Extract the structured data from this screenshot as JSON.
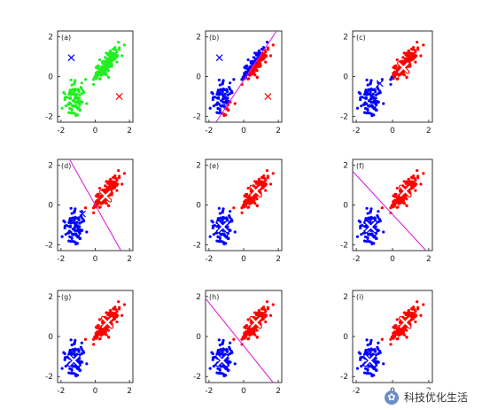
{
  "chart_data": [
    {
      "type": "scatter",
      "label": "(a)",
      "xlim": [
        -2.2,
        2.2
      ],
      "ylim": [
        -2.3,
        2.3
      ],
      "x_ticks": [
        "-2",
        "0",
        "2"
      ],
      "y_ticks": [
        "2",
        "0",
        "-2"
      ],
      "boundary": null,
      "centers": [
        {
          "x": -1.4,
          "y": 0.95,
          "color": "#0000ff",
          "marker": "x"
        },
        {
          "x": 1.4,
          "y": -1.0,
          "color": "#ff0000",
          "marker": "x"
        }
      ],
      "mode": "unassigned"
    },
    {
      "type": "scatter",
      "label": "(b)",
      "xlim": [
        -2.2,
        2.2
      ],
      "ylim": [
        -2.3,
        2.3
      ],
      "x_ticks": [
        "-2",
        "0",
        "2"
      ],
      "y_ticks": [
        "2",
        "0",
        "-2"
      ],
      "boundary": {
        "x1": -1.6,
        "y1": -2.3,
        "x2": 1.9,
        "y2": 2.3
      },
      "centers": [
        {
          "x": -1.4,
          "y": 0.95,
          "color": "#0000ff",
          "marker": "x"
        },
        {
          "x": 1.4,
          "y": -1.0,
          "color": "#ff0000",
          "marker": "x"
        }
      ],
      "mode": "split"
    },
    {
      "type": "scatter",
      "label": "(c)",
      "xlim": [
        -2.2,
        2.2
      ],
      "ylim": [
        -2.3,
        2.3
      ],
      "x_ticks": [
        "-2",
        "0",
        "2"
      ],
      "y_ticks": [
        "2",
        "0",
        "-2"
      ],
      "boundary": null,
      "centers": [
        {
          "x": -0.7,
          "y": -0.35,
          "color": "#0000ff",
          "marker": "x"
        },
        {
          "x": 0.6,
          "y": 0.45,
          "color": "#ff0000",
          "marker": "bigx"
        }
      ],
      "mode": "split"
    },
    {
      "type": "scatter",
      "label": "(d)",
      "xlim": [
        -2.2,
        2.2
      ],
      "ylim": [
        -2.3,
        2.3
      ],
      "x_ticks": [
        "-2",
        "0",
        "2"
      ],
      "y_ticks": [
        "2",
        "0",
        "-2"
      ],
      "boundary": {
        "x1": -1.5,
        "y1": 2.3,
        "x2": 1.5,
        "y2": -2.3
      },
      "centers": [
        {
          "x": -0.75,
          "y": -0.45,
          "color": "#0000ff",
          "marker": "x"
        },
        {
          "x": 0.6,
          "y": 0.45,
          "color": "#ff0000",
          "marker": "bigx"
        }
      ],
      "mode": "clustered"
    },
    {
      "type": "scatter",
      "label": "(e)",
      "xlim": [
        -2.2,
        2.2
      ],
      "ylim": [
        -2.3,
        2.3
      ],
      "x_ticks": [
        "-2",
        "0",
        "2"
      ],
      "y_ticks": [
        "2",
        "0",
        "-2"
      ],
      "boundary": null,
      "centers": [
        {
          "x": -1.2,
          "y": -1.1,
          "color": "#0000ff",
          "marker": "bigx"
        },
        {
          "x": 0.7,
          "y": 0.7,
          "color": "#ff0000",
          "marker": "bigx"
        }
      ],
      "mode": "clustered"
    },
    {
      "type": "scatter",
      "label": "(f)",
      "xlim": [
        -2.2,
        2.2
      ],
      "ylim": [
        -2.3,
        2.3
      ],
      "x_ticks": [
        "-2",
        "0",
        "2"
      ],
      "y_ticks": [
        "2",
        "0",
        "-2"
      ],
      "boundary": {
        "x1": -2.2,
        "y1": 1.7,
        "x2": 1.85,
        "y2": -2.3
      },
      "centers": [
        {
          "x": -1.2,
          "y": -1.1,
          "color": "#0000ff",
          "marker": "bigx"
        },
        {
          "x": 0.7,
          "y": 0.7,
          "color": "#ff0000",
          "marker": "bigx"
        }
      ],
      "mode": "clustered"
    },
    {
      "type": "scatter",
      "label": "(g)",
      "xlim": [
        -2.2,
        2.2
      ],
      "ylim": [
        -2.3,
        2.3
      ],
      "x_ticks": [
        "-2",
        "0",
        "2"
      ],
      "y_ticks": [
        "2",
        "0",
        "-2"
      ],
      "boundary": null,
      "centers": [
        {
          "x": -1.25,
          "y": -1.2,
          "color": "#0000ff",
          "marker": "bigx"
        },
        {
          "x": 0.7,
          "y": 0.7,
          "color": "#ff0000",
          "marker": "bigx"
        }
      ],
      "mode": "clustered"
    },
    {
      "type": "scatter",
      "label": "(h)",
      "xlim": [
        -2.2,
        2.2
      ],
      "ylim": [
        -2.3,
        2.3
      ],
      "x_ticks": [
        "-2",
        "0",
        "2"
      ],
      "y_ticks": [
        "2",
        "0",
        "-2"
      ],
      "boundary": {
        "x1": -2.2,
        "y1": 1.9,
        "x2": 1.7,
        "y2": -2.3
      },
      "centers": [
        {
          "x": -1.25,
          "y": -1.2,
          "color": "#0000ff",
          "marker": "bigx"
        },
        {
          "x": 0.7,
          "y": 0.7,
          "color": "#ff0000",
          "marker": "bigx"
        }
      ],
      "mode": "clustered"
    },
    {
      "type": "scatter",
      "label": "(i)",
      "xlim": [
        -2.2,
        2.2
      ],
      "ylim": [
        -2.3,
        2.3
      ],
      "x_ticks": [
        "-2",
        "0",
        "2"
      ],
      "y_ticks": [
        "2",
        "0",
        "-2"
      ],
      "boundary": null,
      "centers": [
        {
          "x": -1.25,
          "y": -1.2,
          "color": "#0000ff",
          "marker": "bigx"
        },
        {
          "x": 0.7,
          "y": 0.7,
          "color": "#ff0000",
          "marker": "bigx"
        }
      ],
      "mode": "clustered"
    }
  ],
  "colors": {
    "cluster_a": "#0000ff",
    "cluster_b": "#ff0000",
    "unassigned": "#22ee22",
    "boundary": "#e020e0"
  },
  "watermark": {
    "icon": "wechat-icon",
    "text": "科技优化生活"
  }
}
